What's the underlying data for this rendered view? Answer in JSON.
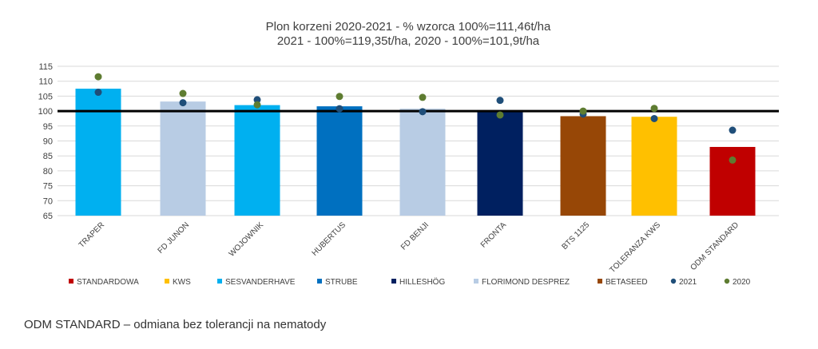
{
  "chart_data": {
    "type": "bar",
    "title_lines": [
      "Plon korzeni 2020-2021 - % wzorca 100%=111,46t/ha",
      "2021 - 100%=119,35t/ha, 2020 - 100%=101,9t/ha"
    ],
    "categories": [
      "TRAPER",
      "FD JUNON",
      "WOJOWNIK",
      "HUBERTUS",
      "FD BENJI",
      "FRONTA",
      "BTS 1125",
      "TOLERANZA KWS",
      "ODM STANDARD"
    ],
    "values": [
      107.5,
      103.2,
      102.0,
      101.6,
      100.8,
      100.3,
      98.3,
      98.1,
      88.0
    ],
    "bar_colors": [
      "#00B0F0",
      "#B8CCE4",
      "#00B0F0",
      "#0070C0",
      "#B8CCE4",
      "#002060",
      "#974706",
      "#FFC000",
      "#C00000"
    ],
    "series": [
      {
        "name": "2021",
        "color": "#1F4E79",
        "values": [
          106.3,
          102.8,
          103.8,
          100.8,
          99.8,
          103.6,
          99.0,
          97.5,
          93.6
        ]
      },
      {
        "name": "2020",
        "color": "#5E7C31",
        "values": [
          111.5,
          105.9,
          102.1,
          104.9,
          104.6,
          98.7,
          100.0,
          100.9,
          83.6
        ]
      }
    ],
    "reference_line": 100,
    "ylim": [
      65,
      115
    ],
    "yticks": [
      65,
      70,
      75,
      80,
      85,
      90,
      95,
      100,
      105,
      110,
      115
    ],
    "grid": true,
    "legend": {
      "position": "bottom",
      "items": [
        {
          "label": "STANDARDOWA",
          "color": "#C00000",
          "marker": "square"
        },
        {
          "label": "KWS",
          "color": "#FFC000",
          "marker": "square"
        },
        {
          "label": "SESVANDERHAVE",
          "color": "#00B0F0",
          "marker": "square"
        },
        {
          "label": "STRUBE",
          "color": "#0070C0",
          "marker": "square"
        },
        {
          "label": "HILLESHÖG",
          "color": "#002060",
          "marker": "square"
        },
        {
          "label": "FLORIMOND DESPREZ",
          "color": "#B8CCE4",
          "marker": "square"
        },
        {
          "label": "BETASEED",
          "color": "#974706",
          "marker": "square"
        },
        {
          "label": "2021",
          "color": "#1F4E79",
          "marker": "circle"
        },
        {
          "label": "2020",
          "color": "#5E7C31",
          "marker": "circle"
        }
      ]
    }
  },
  "footnote": "ODM STANDARD – odmiana bez tolerancji na nematody"
}
